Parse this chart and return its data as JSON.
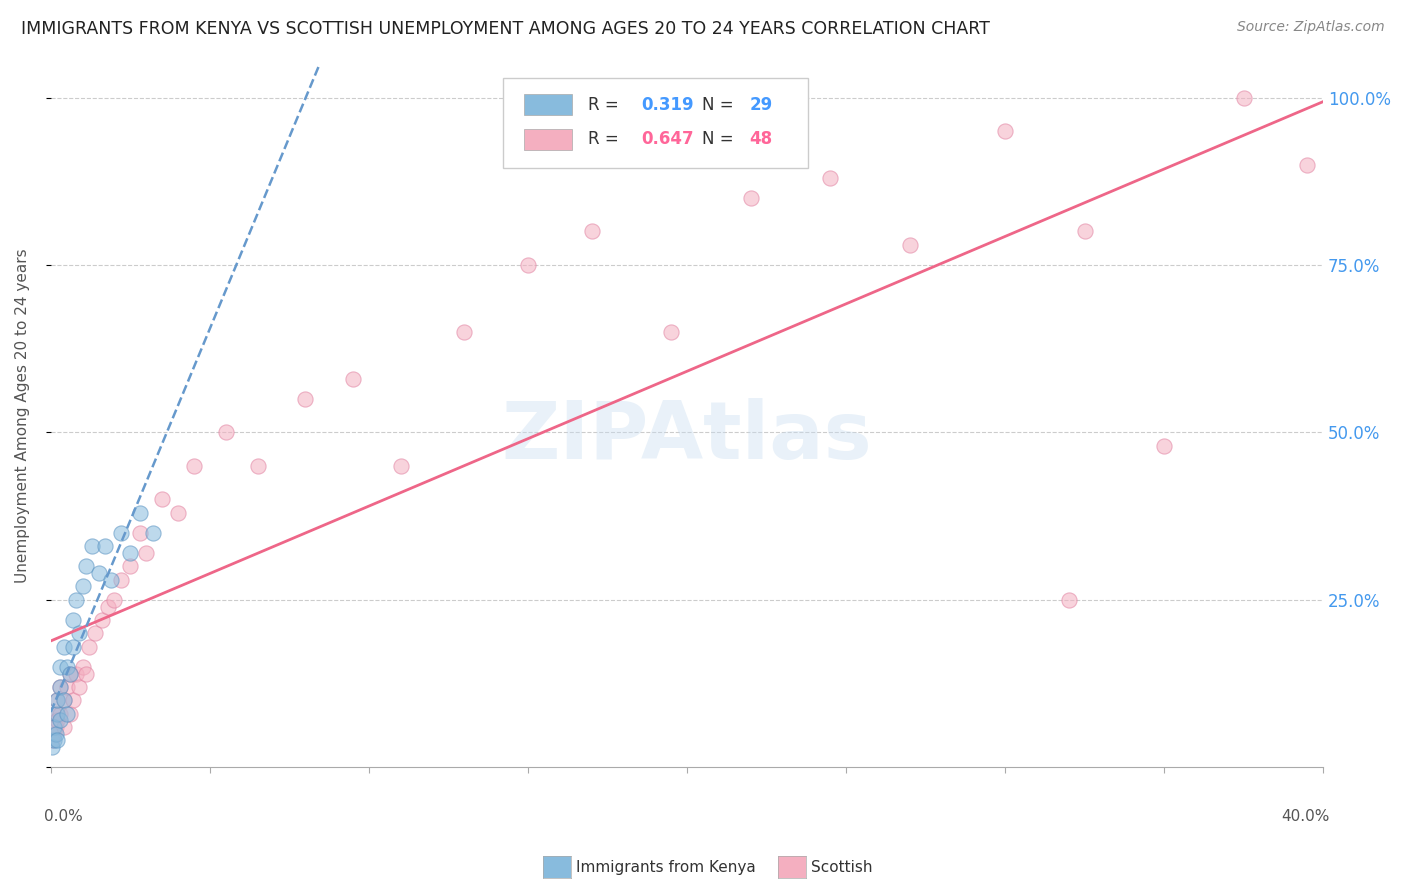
{
  "title": "IMMIGRANTS FROM KENYA VS SCOTTISH UNEMPLOYMENT AMONG AGES 20 TO 24 YEARS CORRELATION CHART",
  "source": "Source: ZipAtlas.com",
  "ylabel_text": "Unemployment Among Ages 20 to 24 years",
  "legend_blue_R": "0.319",
  "legend_blue_N": "29",
  "legend_pink_R": "0.647",
  "legend_pink_N": "48",
  "scatter_blue_color": "#88bbdd",
  "scatter_blue_edge": "#5590c0",
  "scatter_pink_color": "#f4afc0",
  "scatter_pink_edge": "#e080a0",
  "blue_trend_color": "#6699cc",
  "pink_trend_color": "#ee6688",
  "background_color": "#ffffff",
  "grid_color": "#cccccc",
  "xmin": 0.0,
  "xmax": 0.4,
  "ymin": 0.0,
  "ymax": 1.05,
  "blue_scatter_x": [
    0.0005,
    0.001,
    0.001,
    0.0015,
    0.002,
    0.002,
    0.002,
    0.003,
    0.003,
    0.003,
    0.004,
    0.004,
    0.005,
    0.005,
    0.006,
    0.007,
    0.007,
    0.008,
    0.009,
    0.01,
    0.011,
    0.013,
    0.015,
    0.017,
    0.019,
    0.022,
    0.025,
    0.028,
    0.032
  ],
  "blue_scatter_y": [
    0.03,
    0.04,
    0.06,
    0.05,
    0.08,
    0.1,
    0.04,
    0.12,
    0.07,
    0.15,
    0.1,
    0.18,
    0.08,
    0.15,
    0.14,
    0.22,
    0.18,
    0.25,
    0.2,
    0.27,
    0.3,
    0.33,
    0.29,
    0.33,
    0.28,
    0.35,
    0.32,
    0.38,
    0.35
  ],
  "pink_scatter_x": [
    0.0005,
    0.001,
    0.001,
    0.0015,
    0.002,
    0.002,
    0.003,
    0.003,
    0.004,
    0.004,
    0.005,
    0.006,
    0.006,
    0.007,
    0.008,
    0.009,
    0.01,
    0.011,
    0.012,
    0.014,
    0.016,
    0.018,
    0.02,
    0.022,
    0.025,
    0.028,
    0.03,
    0.035,
    0.04,
    0.045,
    0.055,
    0.065,
    0.08,
    0.095,
    0.11,
    0.13,
    0.15,
    0.17,
    0.195,
    0.22,
    0.245,
    0.27,
    0.3,
    0.325,
    0.35,
    0.375,
    0.32,
    0.395
  ],
  "pink_scatter_y": [
    0.04,
    0.05,
    0.08,
    0.06,
    0.07,
    0.1,
    0.08,
    0.12,
    0.06,
    0.1,
    0.12,
    0.14,
    0.08,
    0.1,
    0.14,
    0.12,
    0.15,
    0.14,
    0.18,
    0.2,
    0.22,
    0.24,
    0.25,
    0.28,
    0.3,
    0.35,
    0.32,
    0.4,
    0.38,
    0.45,
    0.5,
    0.45,
    0.55,
    0.58,
    0.45,
    0.65,
    0.75,
    0.8,
    0.65,
    0.85,
    0.88,
    0.78,
    0.95,
    0.8,
    0.48,
    1.0,
    0.25,
    0.9
  ],
  "scatter_size": 120,
  "scatter_alpha": 0.55
}
